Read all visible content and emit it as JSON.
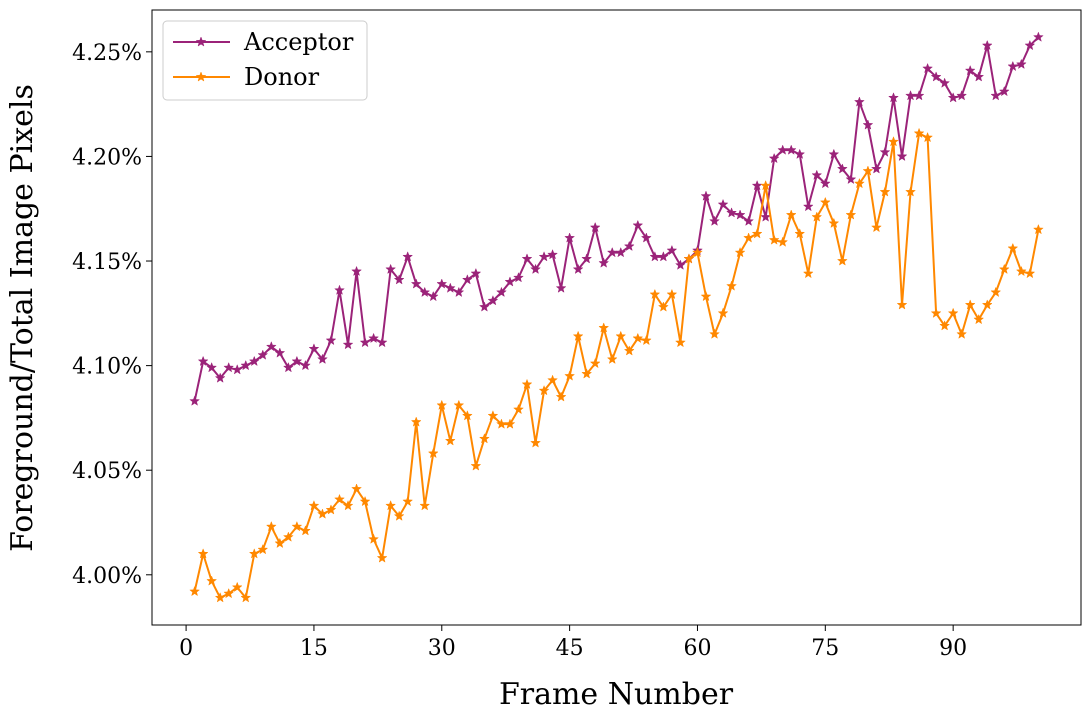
{
  "chart_data": {
    "type": "line",
    "xlabel": "Frame Number",
    "ylabel": "Foreground/Total Image Pixels",
    "xlim": [
      -4,
      105
    ],
    "ylim": [
      3.976,
      4.27
    ],
    "x_ticks": [
      0,
      15,
      30,
      45,
      60,
      75,
      90
    ],
    "y_ticks": [
      4.0,
      4.05,
      4.1,
      4.15,
      4.2,
      4.25
    ],
    "y_tick_suffix": "%",
    "grid": false,
    "legend_position": "top-left",
    "marker": "star",
    "series": [
      {
        "name": "Acceptor",
        "color": "#9b2379",
        "x": [
          1,
          2,
          3,
          4,
          5,
          6,
          7,
          8,
          9,
          10,
          11,
          12,
          13,
          14,
          15,
          16,
          17,
          18,
          19,
          20,
          21,
          22,
          23,
          24,
          25,
          26,
          27,
          28,
          29,
          30,
          31,
          32,
          33,
          34,
          35,
          36,
          37,
          38,
          39,
          40,
          41,
          42,
          43,
          44,
          45,
          46,
          47,
          48,
          49,
          50,
          51,
          52,
          53,
          54,
          55,
          56,
          57,
          58,
          59,
          60,
          61,
          62,
          63,
          64,
          65,
          66,
          67,
          68,
          69,
          70,
          71,
          72,
          73,
          74,
          75,
          76,
          77,
          78,
          79,
          80,
          81,
          82,
          83,
          84,
          85,
          86,
          87,
          88,
          89,
          90,
          91,
          92,
          93,
          94,
          95,
          96,
          97,
          98,
          99,
          100
        ],
        "values": [
          4.083,
          4.102,
          4.099,
          4.094,
          4.099,
          4.098,
          4.1,
          4.102,
          4.105,
          4.109,
          4.106,
          4.099,
          4.102,
          4.1,
          4.108,
          4.103,
          4.112,
          4.136,
          4.11,
          4.145,
          4.111,
          4.113,
          4.111,
          4.146,
          4.141,
          4.152,
          4.139,
          4.135,
          4.133,
          4.139,
          4.137,
          4.135,
          4.141,
          4.144,
          4.128,
          4.131,
          4.135,
          4.14,
          4.142,
          4.151,
          4.146,
          4.152,
          4.153,
          4.137,
          4.161,
          4.146,
          4.151,
          4.166,
          4.149,
          4.154,
          4.154,
          4.157,
          4.167,
          4.161,
          4.152,
          4.152,
          4.155,
          4.148,
          4.151,
          4.155,
          4.181,
          4.169,
          4.177,
          4.173,
          4.172,
          4.169,
          4.186,
          4.171,
          4.199,
          4.203,
          4.203,
          4.201,
          4.176,
          4.191,
          4.187,
          4.201,
          4.194,
          4.189,
          4.226,
          4.215,
          4.194,
          4.202,
          4.228,
          4.2,
          4.229,
          4.229,
          4.242,
          4.238,
          4.235,
          4.228,
          4.229,
          4.241,
          4.238,
          4.253,
          4.229,
          4.231,
          4.243,
          4.244,
          4.253,
          4.257
        ]
      },
      {
        "name": "Donor",
        "color": "#ff8800",
        "x": [
          1,
          2,
          3,
          4,
          5,
          6,
          7,
          8,
          9,
          10,
          11,
          12,
          13,
          14,
          15,
          16,
          17,
          18,
          19,
          20,
          21,
          22,
          23,
          24,
          25,
          26,
          27,
          28,
          29,
          30,
          31,
          32,
          33,
          34,
          35,
          36,
          37,
          38,
          39,
          40,
          41,
          42,
          43,
          44,
          45,
          46,
          47,
          48,
          49,
          50,
          51,
          52,
          53,
          54,
          55,
          56,
          57,
          58,
          59,
          60,
          61,
          62,
          63,
          64,
          65,
          66,
          67,
          68,
          69,
          70,
          71,
          72,
          73,
          74,
          75,
          76,
          77,
          78,
          79,
          80,
          81,
          82,
          83,
          84,
          85,
          86,
          87,
          88,
          89,
          90,
          91,
          92,
          93,
          94,
          95,
          96,
          97,
          98,
          99,
          100
        ],
        "values": [
          3.992,
          4.01,
          3.997,
          3.989,
          3.991,
          3.994,
          3.989,
          4.01,
          4.012,
          4.023,
          4.015,
          4.018,
          4.023,
          4.021,
          4.033,
          4.029,
          4.031,
          4.036,
          4.033,
          4.041,
          4.035,
          4.017,
          4.008,
          4.033,
          4.028,
          4.035,
          4.073,
          4.033,
          4.058,
          4.081,
          4.064,
          4.081,
          4.076,
          4.052,
          4.065,
          4.076,
          4.072,
          4.072,
          4.079,
          4.091,
          4.063,
          4.088,
          4.093,
          4.085,
          4.095,
          4.114,
          4.096,
          4.101,
          4.118,
          4.103,
          4.114,
          4.107,
          4.113,
          4.112,
          4.134,
          4.128,
          4.134,
          4.111,
          4.151,
          4.154,
          4.133,
          4.115,
          4.125,
          4.138,
          4.154,
          4.161,
          4.163,
          4.186,
          4.16,
          4.159,
          4.172,
          4.163,
          4.144,
          4.171,
          4.178,
          4.168,
          4.15,
          4.172,
          4.187,
          4.193,
          4.166,
          4.183,
          4.207,
          4.129,
          4.183,
          4.211,
          4.209,
          4.125,
          4.119,
          4.125,
          4.115,
          4.129,
          4.122,
          4.129,
          4.135,
          4.146,
          4.156,
          4.145,
          4.144,
          4.165
        ]
      }
    ]
  }
}
